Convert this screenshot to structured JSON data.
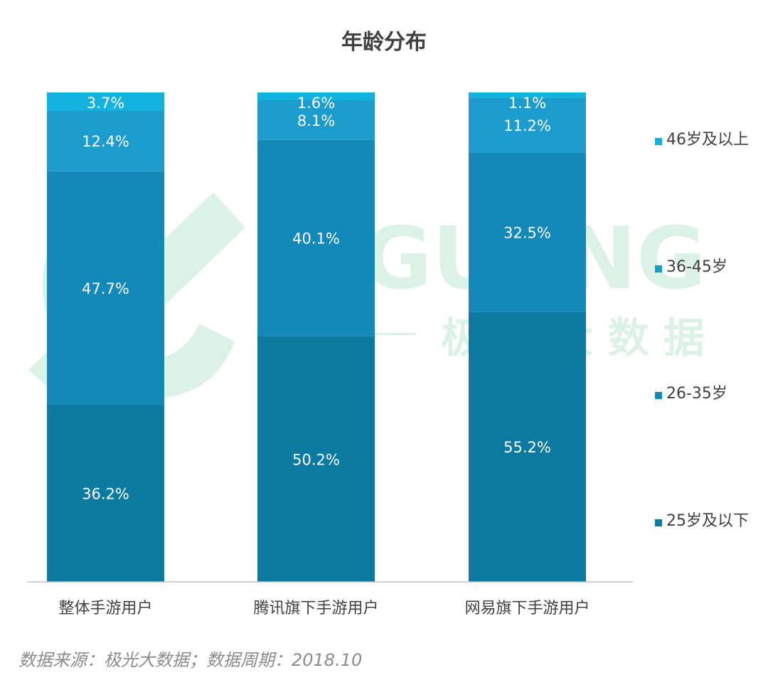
{
  "title": "年龄分布",
  "source": "数据来源：极光大数据；数据周期：2018.10",
  "watermark": {
    "brand": "JIGUANG",
    "cn": "极 光 大 数 据"
  },
  "colors": {
    "25岁及以下": "#0a7aa0",
    "26-35岁": "#1289b8",
    "36-45岁": "#1b9ccc",
    "46岁及以上": "#13b2de",
    "axis": "#bfbfbf",
    "label": "#ffffff",
    "text": "#404040"
  },
  "chart_data": {
    "type": "bar",
    "stacked": true,
    "title": "年龄分布",
    "categories": [
      "整体手游用户",
      "腾讯旗下手游用户",
      "网易旗下手游用户"
    ],
    "series": [
      {
        "name": "25岁及以下",
        "values": [
          36.2,
          50.2,
          55.2
        ],
        "labels": [
          "36.2%",
          "50.2%",
          "55.2%"
        ]
      },
      {
        "name": "26-35岁",
        "values": [
          47.7,
          40.1,
          32.5
        ],
        "labels": [
          "47.7%",
          "40.1%",
          "32.5%"
        ]
      },
      {
        "name": "36-45岁",
        "values": [
          12.4,
          8.1,
          11.2
        ],
        "labels": [
          "12.4%",
          "8.1%",
          "11.2%"
        ]
      },
      {
        "name": "46岁及以上",
        "values": [
          3.7,
          1.6,
          1.1
        ],
        "labels": [
          "3.7%",
          "1.6%",
          "1.1%"
        ]
      }
    ],
    "legend": [
      "46岁及以上",
      "36-45岁",
      "26-35岁",
      "25岁及以下"
    ],
    "legend_position": "right",
    "ylim": [
      0,
      100
    ],
    "grid": false
  }
}
